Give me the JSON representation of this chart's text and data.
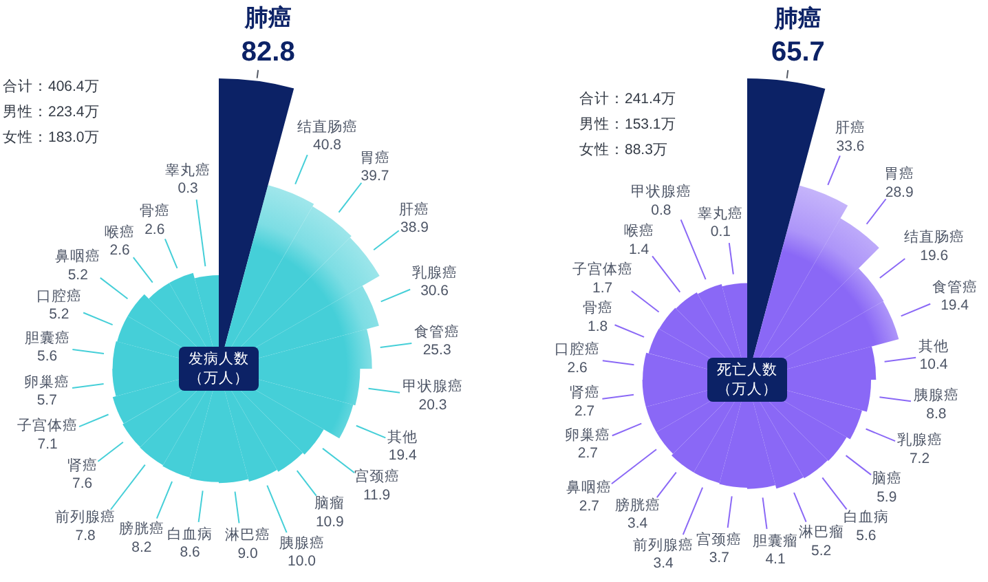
{
  "chart_data": [
    {
      "type": "other",
      "title": "发病人数（万人）",
      "categories": [
        "肺癌",
        "结直肠癌",
        "胃癌",
        "肝癌",
        "乳腺癌",
        "食管癌",
        "甲状腺癌",
        "其他",
        "宫颈癌",
        "脑瘤",
        "胰腺癌",
        "淋巴癌",
        "白血病",
        "膀胱癌",
        "前列腺癌",
        "肾癌",
        "子宫体癌",
        "卵巢癌",
        "胆囊癌",
        "口腔癌",
        "鼻咽癌",
        "喉癌",
        "骨癌",
        "睾丸癌"
      ],
      "values": [
        82.8,
        40.8,
        39.7,
        38.9,
        30.6,
        25.3,
        20.3,
        19.4,
        11.9,
        10.9,
        10.0,
        9.0,
        8.6,
        8.2,
        7.8,
        7.6,
        7.1,
        5.7,
        5.6,
        5.2,
        5.2,
        2.6,
        2.6,
        0.3
      ],
      "value_labels": [
        "82.8",
        "40.8",
        "39.7",
        "38.9",
        "30.6",
        "25.3",
        "20.3",
        "19.4",
        "11.9",
        "10.9",
        "10.0",
        "9.0",
        "8.6",
        "8.2",
        "7.8",
        "7.6",
        "7.1",
        "5.7",
        "5.6",
        "5.2",
        "5.2",
        "2.6",
        "2.6",
        "0.3"
      ],
      "colors": [
        "#0c2266",
        "#45cfd8",
        "#45cfd8",
        "#45cfd8",
        "#45cfd8",
        "#45cfd8",
        "#45cfd8",
        "#45cfd8",
        "#45cfd8",
        "#45cfd8",
        "#45cfd8",
        "#45cfd8",
        "#45cfd8",
        "#45cfd8",
        "#45cfd8",
        "#45cfd8",
        "#45cfd8",
        "#45cfd8",
        "#45cfd8",
        "#45cfd8",
        "#45cfd8",
        "#45cfd8",
        "#45cfd8",
        "#45cfd8"
      ],
      "annotations": [
        "合计：406.4万",
        "男性：223.4万",
        "女性：183.0万"
      ]
    },
    {
      "type": "other",
      "title": "死亡人数（万人）",
      "categories": [
        "肺癌",
        "肝癌",
        "胃癌",
        "结直肠癌",
        "食管癌",
        "其他",
        "胰腺癌",
        "乳腺癌",
        "脑癌",
        "白血病",
        "淋巴瘤",
        "胆囊瘤",
        "宫颈癌",
        "前列腺癌",
        "膀胱癌",
        "鼻咽癌",
        "卵巢癌",
        "肾癌",
        "口腔癌",
        "骨癌",
        "子宫体癌",
        "喉癌",
        "甲状腺癌",
        "睾丸癌"
      ],
      "values": [
        65.7,
        33.6,
        28.9,
        19.6,
        19.4,
        10.4,
        8.8,
        7.2,
        5.9,
        5.6,
        5.2,
        4.1,
        3.7,
        3.4,
        3.4,
        2.7,
        2.7,
        2.7,
        2.6,
        1.8,
        1.7,
        1.4,
        0.8,
        0.1
      ],
      "value_labels": [
        "65.7",
        "33.6",
        "28.9",
        "19.6",
        "19.4",
        "10.4",
        "8.8",
        "7.2",
        "5.9",
        "5.6",
        "5.2",
        "4.1",
        "3.7",
        "3.4",
        "3.4",
        "2.7",
        "2.7",
        "2.7",
        "2.6",
        "1.8",
        "1.7",
        "1.4",
        "0.8",
        "0.1"
      ],
      "colors": [
        "#0c2266",
        "#8a68f6",
        "#8a68f6",
        "#8a68f6",
        "#8a68f6",
        "#8a68f6",
        "#8a68f6",
        "#8a68f6",
        "#8a68f6",
        "#8a68f6",
        "#8a68f6",
        "#8a68f6",
        "#8a68f6",
        "#8a68f6",
        "#8a68f6",
        "#8a68f6",
        "#8a68f6",
        "#8a68f6",
        "#8a68f6",
        "#8a68f6",
        "#8a68f6",
        "#8a68f6",
        "#8a68f6",
        "#8a68f6"
      ],
      "annotations": [
        "合计：241.4万",
        "男性：153.1万",
        "女性：88.3万"
      ]
    }
  ]
}
